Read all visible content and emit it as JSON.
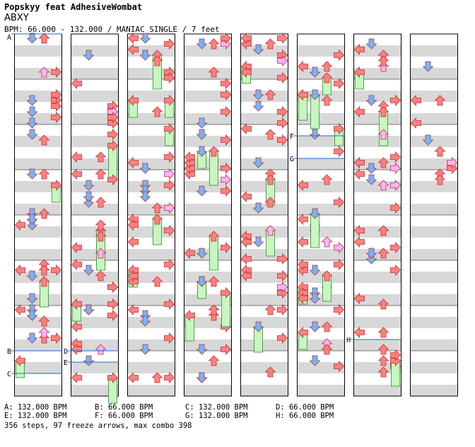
{
  "header": {
    "title": "Popskyy feat AdhesiveWombat",
    "subtitle": "ABXY",
    "info": "BPM: 66.000 - 132.000 / MANIAC SINGLE / 7 feet"
  },
  "chart_data": {
    "type": "other",
    "lanes": 4,
    "note_colors": {
      "left": "#ff8080",
      "down": "#6fb7ff",
      "up": "#ff8080",
      "right": "#ff8080",
      "alt": "#ffb3ff",
      "freeze": "#c8f5c0"
    },
    "bpm_markers": [
      "A",
      "B",
      "C",
      "D",
      "E",
      "F",
      "G",
      "H"
    ]
  },
  "bpm_legend": [
    {
      "id": "A",
      "text": "A: 132.000 BPM"
    },
    {
      "id": "B",
      "text": "B: 66.000 BPM"
    },
    {
      "id": "C",
      "text": "C: 132.000 BPM"
    },
    {
      "id": "D",
      "text": "D: 66.000 BPM"
    },
    {
      "id": "E",
      "text": "E: 132.000 BPM"
    },
    {
      "id": "F",
      "text": "F: 66.000 BPM"
    },
    {
      "id": "G",
      "text": "G: 132.000 BPM"
    },
    {
      "id": "H",
      "text": "H: 66.000 BPM"
    }
  ],
  "footer": "356 steps, 97 freeze arrows, max combo 398"
}
